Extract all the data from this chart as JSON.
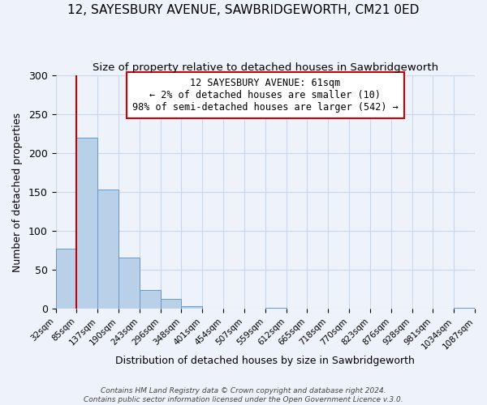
{
  "title": "12, SAYESBURY AVENUE, SAWBRIDGEWORTH, CM21 0ED",
  "subtitle": "Size of property relative to detached houses in Sawbridgeworth",
  "xlabel": "Distribution of detached houses by size in Sawbridgeworth",
  "ylabel": "Number of detached properties",
  "bar_values": [
    77,
    220,
    153,
    66,
    24,
    13,
    4,
    0,
    0,
    0,
    1,
    0,
    0,
    0,
    0,
    0,
    0,
    0,
    0,
    1
  ],
  "bin_labels": [
    "32sqm",
    "85sqm",
    "137sqm",
    "190sqm",
    "243sqm",
    "296sqm",
    "348sqm",
    "401sqm",
    "454sqm",
    "507sqm",
    "559sqm",
    "612sqm",
    "665sqm",
    "718sqm",
    "770sqm",
    "823sqm",
    "876sqm",
    "928sqm",
    "981sqm",
    "1034sqm",
    "1087sqm"
  ],
  "bar_color": "#b8d0e8",
  "bar_edge_color": "#6699cc",
  "ylim": [
    0,
    300
  ],
  "yticks": [
    0,
    50,
    100,
    150,
    200,
    250,
    300
  ],
  "annotation_line1": "12 SAYESBURY AVENUE: 61sqm",
  "annotation_line2": "← 2% of detached houses are smaller (10)",
  "annotation_line3": "98% of semi-detached houses are larger (542) →",
  "vline_color": "#cc0000",
  "footer1": "Contains HM Land Registry data © Crown copyright and database right 2024.",
  "footer2": "Contains public sector information licensed under the Open Government Licence v.3.0.",
  "background_color": "#eef2fa",
  "grid_color": "#c8d8ea"
}
